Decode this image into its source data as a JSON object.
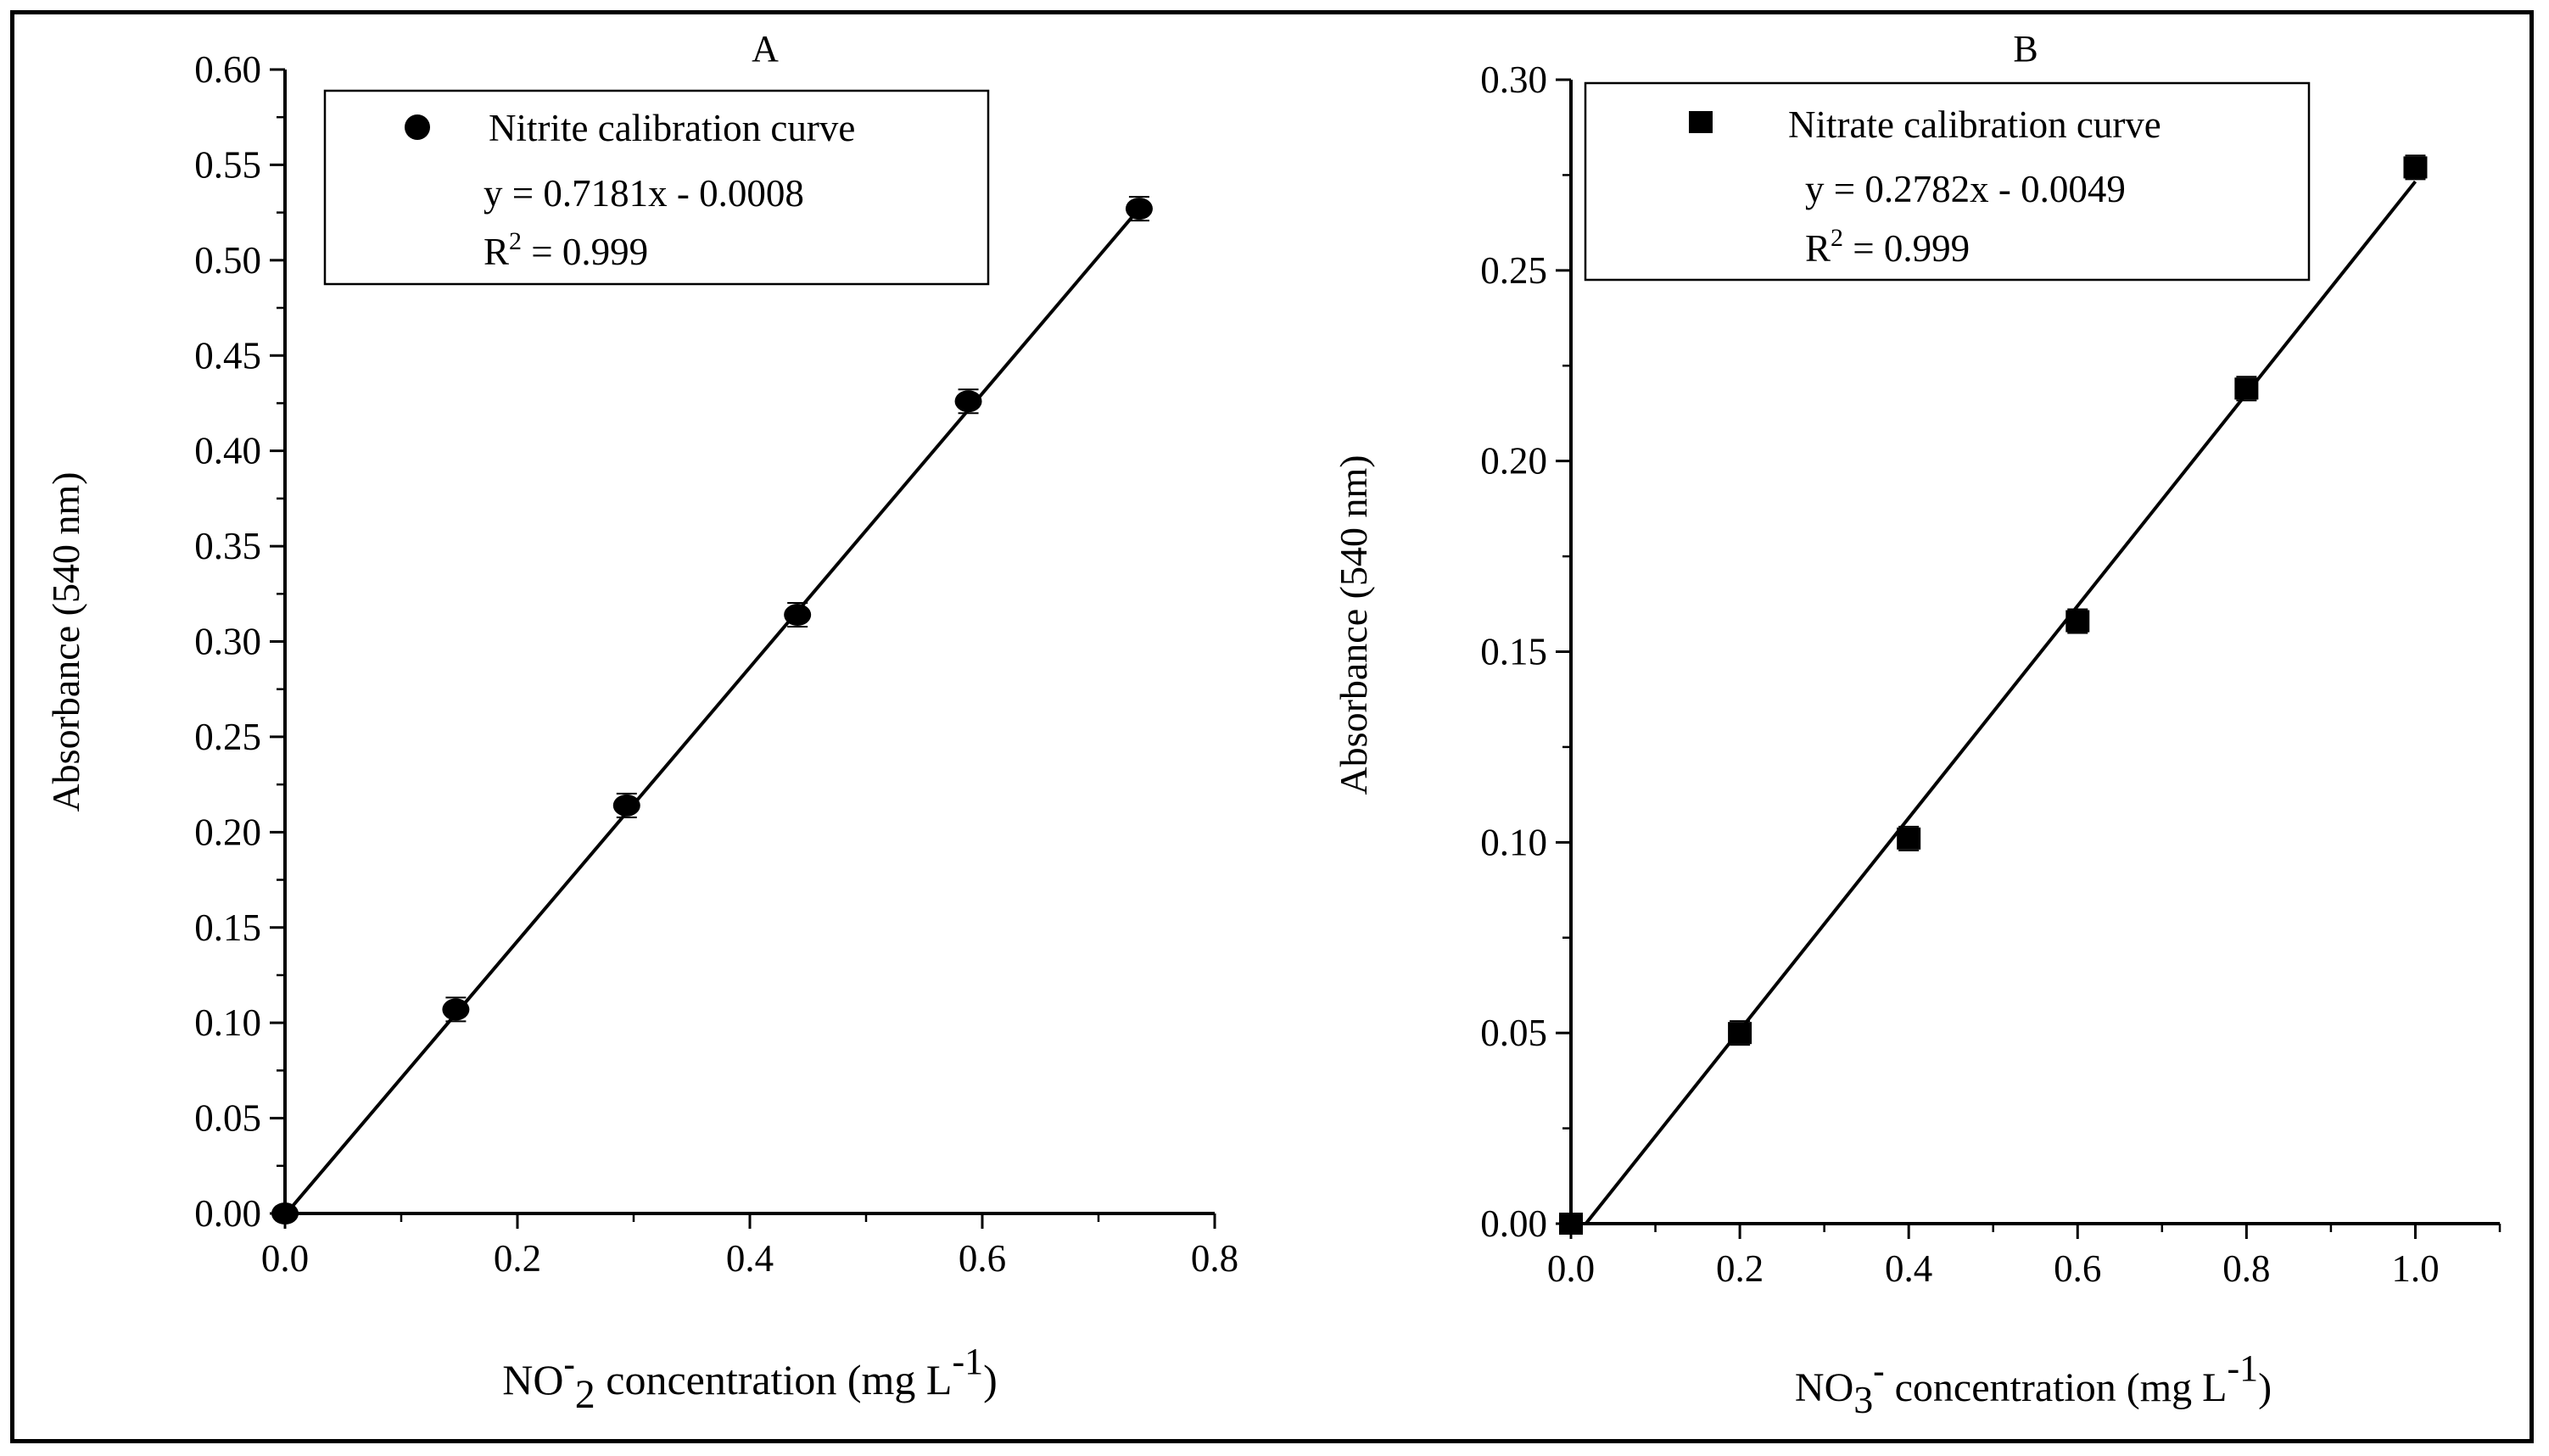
{
  "colors": {
    "ink": "#000000",
    "background": "#ffffff"
  },
  "chart_data": [
    {
      "type": "scatter",
      "panel_label": "A",
      "marker": "circle",
      "legend": {
        "entry": "Nitrite calibration curve",
        "equation": "y = 0.7181x - 0.0008",
        "r2_prefix": "R",
        "r2_exp": "2",
        "r2_value": " = 0.999"
      },
      "xlabel": {
        "pre": "NO",
        "sup1": "-",
        "sub": "2",
        "post": " concentration (mg L",
        "sup2": "-1",
        "close": ")"
      },
      "ylabel": "Absorbance (540 nm)",
      "xlim": [
        0,
        0.8
      ],
      "ylim": [
        0,
        0.6
      ],
      "xticks": [
        0.0,
        0.2,
        0.4,
        0.6,
        0.8
      ],
      "xtick_labels": [
        "0.0",
        "0.2",
        "0.4",
        "0.6",
        "0.8"
      ],
      "yticks": [
        0.0,
        0.05,
        0.1,
        0.15,
        0.2,
        0.25,
        0.3,
        0.35,
        0.4,
        0.45,
        0.5,
        0.55,
        0.6
      ],
      "ytick_labels": [
        "0.00",
        "0.05",
        "0.10",
        "0.15",
        "0.20",
        "0.25",
        "0.30",
        "0.35",
        "0.40",
        "0.45",
        "0.50",
        "0.55",
        "0.60"
      ],
      "x": [
        0.0,
        0.147,
        0.294,
        0.441,
        0.588,
        0.735
      ],
      "y": [
        0.0,
        0.107,
        0.214,
        0.314,
        0.426,
        0.527
      ],
      "fit": {
        "slope": 0.7181,
        "intercept": -0.0008,
        "x_range": [
          0.0,
          0.735
        ]
      }
    },
    {
      "type": "scatter",
      "panel_label": "B",
      "marker": "square",
      "legend": {
        "entry": "Nitrate calibration curve",
        "equation": "y = 0.2782x - 0.0049",
        "r2_prefix": "R",
        "r2_exp": "2",
        "r2_value": " = 0.999"
      },
      "xlabel": {
        "pre": "NO",
        "sub": "3",
        "sup1": "-",
        "post": " concentration (mg L",
        "sup2": "-1",
        "close": ")"
      },
      "ylabel": "Absorbance (540 nm)",
      "xlim": [
        0,
        1.1
      ],
      "ylim": [
        0,
        0.3
      ],
      "xticks": [
        0.0,
        0.2,
        0.4,
        0.6,
        0.8,
        1.0
      ],
      "xtick_labels": [
        "0.0",
        "0.2",
        "0.4",
        "0.6",
        "0.8",
        "1.0"
      ],
      "yticks": [
        0.0,
        0.05,
        0.1,
        0.15,
        0.2,
        0.25,
        0.3
      ],
      "ytick_labels": [
        "0.00",
        "0.05",
        "0.10",
        "0.15",
        "0.20",
        "0.25",
        "0.30"
      ],
      "x": [
        0.0,
        0.2,
        0.4,
        0.6,
        0.8,
        1.0
      ],
      "y": [
        0.0,
        0.05,
        0.101,
        0.158,
        0.219,
        0.277
      ],
      "fit": {
        "slope": 0.2782,
        "intercept": -0.0049,
        "x_range": [
          0.0,
          1.0
        ]
      }
    }
  ]
}
